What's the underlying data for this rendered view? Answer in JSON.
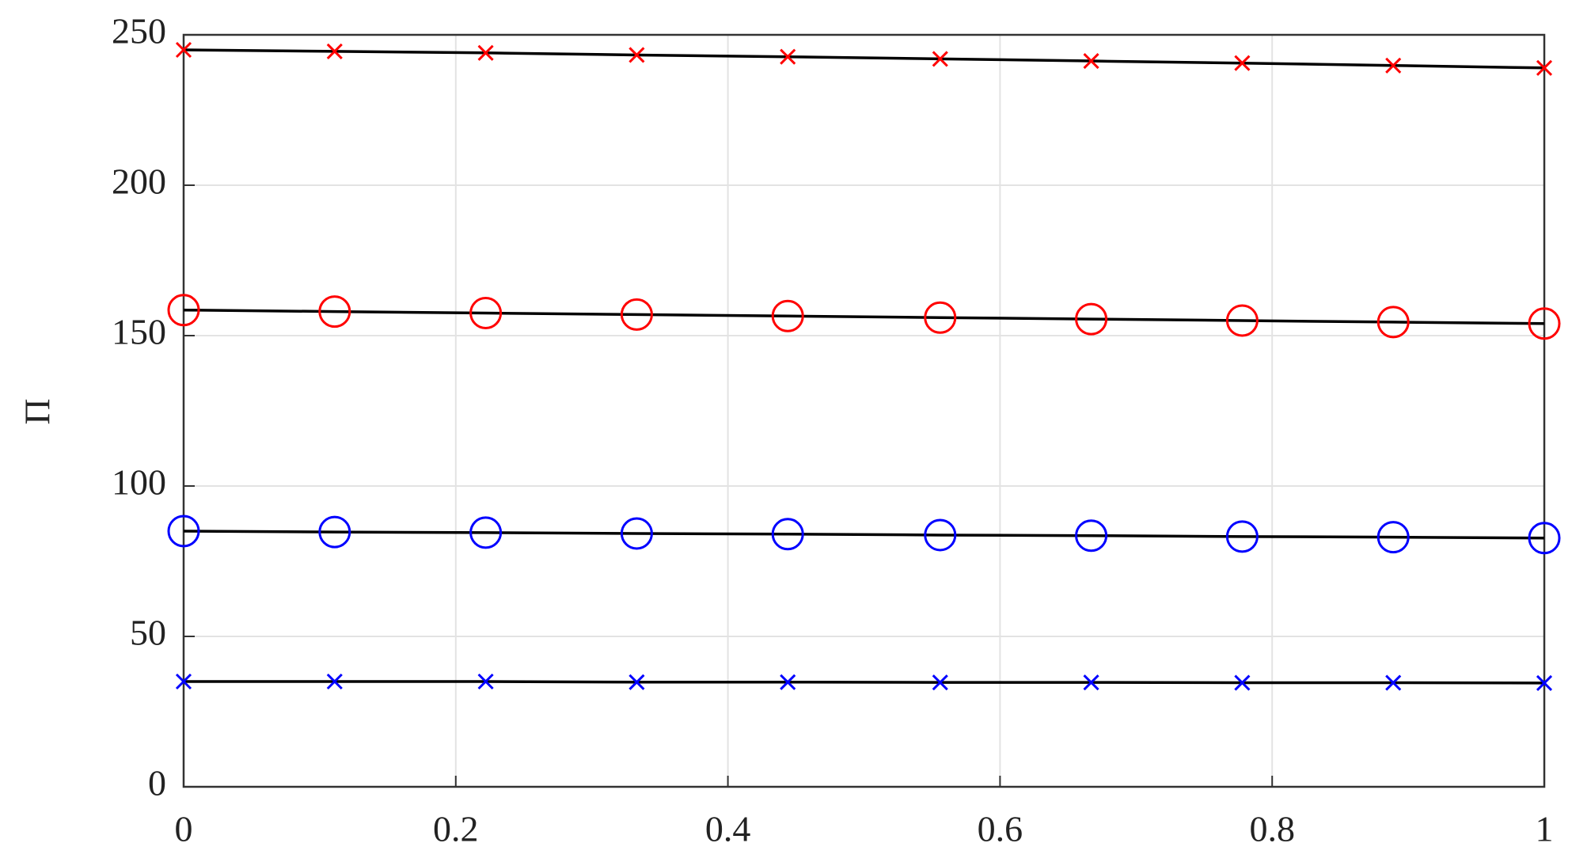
{
  "chart_data": {
    "type": "line",
    "y_label": "Π",
    "x": [
      0,
      0.111,
      0.222,
      0.333,
      0.444,
      0.556,
      0.667,
      0.778,
      0.889,
      1
    ],
    "series": [
      {
        "color": "#ff0000",
        "marker": "x",
        "line_color": "#000000",
        "values": [
          245,
          244.5,
          244,
          243.3,
          242.7,
          242,
          241.3,
          240.6,
          239.8,
          239
        ]
      },
      {
        "color": "#ff0000",
        "marker": "o",
        "line_color": "#000000",
        "values": [
          158.5,
          158,
          157.5,
          157,
          156.5,
          156,
          155.5,
          155,
          154.5,
          154
        ]
      },
      {
        "color": "#0000ff",
        "marker": "o",
        "line_color": "#000000",
        "values": [
          85,
          84.7,
          84.5,
          84.2,
          84,
          83.7,
          83.5,
          83.2,
          83,
          82.7
        ]
      },
      {
        "color": "#0000ff",
        "marker": "x",
        "line_color": "#000000",
        "values": [
          35,
          35,
          35,
          34.8,
          34.8,
          34.7,
          34.7,
          34.6,
          34.6,
          34.5
        ]
      }
    ],
    "xlim": [
      0,
      1
    ],
    "xticks": [
      0,
      0.2,
      0.4,
      0.6,
      0.8,
      1
    ],
    "ylim": [
      0,
      250
    ],
    "yticks": [
      0,
      50,
      100,
      150,
      200,
      250
    ],
    "grid": true
  }
}
